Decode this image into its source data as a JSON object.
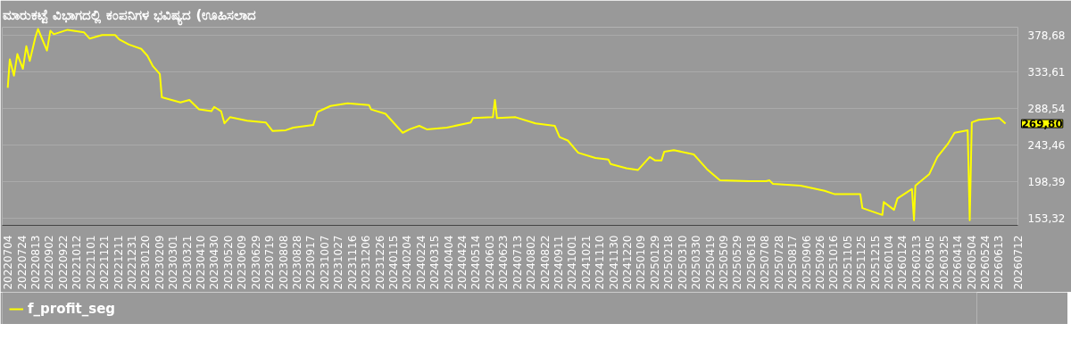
{
  "chart_data": {
    "type": "line",
    "title": "ಮಾರುಕಟ್ಟೆ ವಿಭಾಗದಲ್ಲಿ ಕಂಪನಿಗಳ ಭವಿಷ್ಯದ (ಊಹಿಸಲಾದ",
    "x": [
      "2022-07-04",
      "2022-07-07",
      "2022-07-13",
      "2022-07-18",
      "2022-07-26",
      "2022-07-31",
      "2022-08-05",
      "2022-08-13",
      "2022-08-17",
      "2022-08-30",
      "2022-09-04",
      "2022-09-09",
      "2022-09-29",
      "2022-10-23",
      "2022-10-31",
      "2022-11-18",
      "2022-12-07",
      "2022-12-13",
      "2022-12-27",
      "2023-01-14",
      "2023-01-23",
      "2023-01-31",
      "2023-02-10",
      "2023-02-13",
      "2023-03-12",
      "2023-03-25",
      "2023-04-08",
      "2023-04-26",
      "2023-04-30",
      "2023-05-10",
      "2023-05-15",
      "2023-05-23",
      "2023-06-17",
      "2023-07-14",
      "2023-07-24",
      "2023-08-12",
      "2023-08-23",
      "2023-09-21",
      "2023-09-27",
      "2023-10-16",
      "2023-11-10",
      "2023-12-11",
      "2023-12-14",
      "2024-01-04",
      "2024-01-29",
      "2024-02-08",
      "2024-02-22",
      "2024-03-04",
      "2024-04-02",
      "2024-05-07",
      "2024-05-10",
      "2024-06-08",
      "2024-06-11",
      "2024-06-14",
      "2024-07-11",
      "2024-08-09",
      "2024-09-06",
      "2024-09-13",
      "2024-09-25",
      "2024-10-10",
      "2024-11-04",
      "2024-11-23",
      "2024-11-26",
      "2024-12-19",
      "2025-01-05",
      "2025-01-22",
      "2025-01-30",
      "2025-02-08",
      "2025-02-12",
      "2025-02-26",
      "2025-03-27",
      "2025-04-04",
      "2025-04-15",
      "2025-05-04",
      "2025-06-16",
      "2025-07-10",
      "2025-07-15",
      "2025-07-20",
      "2025-08-29",
      "2025-10-03",
      "2025-10-18",
      "2025-11-24",
      "2025-11-27",
      "2025-12-26",
      "2025-12-28",
      "2026-01-12",
      "2026-01-17",
      "2026-02-07",
      "2026-02-10",
      "2026-02-12",
      "2026-03-04",
      "2026-03-16",
      "2026-03-31",
      "2026-04-10",
      "2026-04-29",
      "2026-05-02",
      "2026-05-05",
      "2026-05-15",
      "2026-06-14",
      "2026-06-23"
    ],
    "series": [
      {
        "name": "f_profit_seg",
        "color": "#ffff00",
        "values": [
          313.9,
          348.9,
          328.7,
          355.3,
          337.2,
          364.9,
          346.8,
          375.5,
          386.1,
          359.6,
          384.0,
          379.7,
          385.1,
          381.9,
          374.4,
          378.7,
          378.7,
          373.4,
          367.0,
          361.7,
          353.2,
          340.4,
          330.8,
          302.1,
          295.8,
          299.0,
          287.3,
          285.1,
          290.4,
          285.1,
          270.2,
          277.7,
          273.4,
          271.3,
          260.7,
          261.7,
          264.9,
          268.1,
          284.1,
          291.5,
          294.7,
          292.6,
          287.3,
          281.9,
          258.6,
          262.8,
          267.1,
          262.8,
          264.9,
          271.3,
          276.6,
          277.7,
          299.0,
          276.6,
          277.7,
          270.2,
          267.1,
          253.2,
          249.0,
          234.1,
          227.7,
          225.6,
          220.3,
          215.0,
          212.9,
          228.8,
          224.5,
          224.5,
          235.2,
          237.3,
          232.0,
          224.5,
          214.0,
          200.1,
          199.0,
          199.0,
          200.1,
          195.8,
          193.7,
          187.3,
          183.1,
          183.1,
          166.1,
          157.6,
          173.5,
          163.9,
          177.8,
          189.5,
          151.2,
          193.7,
          207.5,
          228.8,
          244.7,
          258.6,
          261.7,
          151.2,
          271.3,
          274.5,
          276.6,
          269.8
        ]
      }
    ],
    "xlim": [
      "2022-06-26",
      "2026-07-11"
    ],
    "ylim": [
      144.8,
      388.3
    ],
    "yticks": [
      {
        "value": 153.32,
        "label": "153,32"
      },
      {
        "value": 198.39,
        "label": "198,39"
      },
      {
        "value": 243.46,
        "label": "243,46"
      },
      {
        "value": 288.54,
        "label": "288,54"
      },
      {
        "value": 333.61,
        "label": "333,61"
      },
      {
        "value": 378.68,
        "label": "378,68"
      }
    ],
    "xticks": [
      {
        "value": "2022-07-04",
        "label": "20220704"
      },
      {
        "value": "2022-07-24",
        "label": "20220724"
      },
      {
        "value": "2022-08-13",
        "label": "20220813"
      },
      {
        "value": "2022-09-02",
        "label": "20220902"
      },
      {
        "value": "2022-09-22",
        "label": "20220922"
      },
      {
        "value": "2022-10-12",
        "label": "20221012"
      },
      {
        "value": "2022-11-01",
        "label": "20221101"
      },
      {
        "value": "2022-11-21",
        "label": "20221121"
      },
      {
        "value": "2022-12-11",
        "label": "20221211"
      },
      {
        "value": "2022-12-31",
        "label": "20221231"
      },
      {
        "value": "2023-01-20",
        "label": "20230120"
      },
      {
        "value": "2023-02-09",
        "label": "20230209"
      },
      {
        "value": "2023-03-01",
        "label": "20230301"
      },
      {
        "value": "2023-03-21",
        "label": "20230321"
      },
      {
        "value": "2023-04-10",
        "label": "20230410"
      },
      {
        "value": "2023-04-30",
        "label": "20230430"
      },
      {
        "value": "2023-05-20",
        "label": "20230520"
      },
      {
        "value": "2023-06-09",
        "label": "20230609"
      },
      {
        "value": "2023-06-29",
        "label": "20230629"
      },
      {
        "value": "2023-07-19",
        "label": "20230719"
      },
      {
        "value": "2023-08-08",
        "label": "20230808"
      },
      {
        "value": "2023-08-28",
        "label": "20230828"
      },
      {
        "value": "2023-09-17",
        "label": "20230917"
      },
      {
        "value": "2023-10-07",
        "label": "20231007"
      },
      {
        "value": "2023-10-27",
        "label": "20231027"
      },
      {
        "value": "2023-11-16",
        "label": "20231116"
      },
      {
        "value": "2023-12-06",
        "label": "20231206"
      },
      {
        "value": "2023-12-26",
        "label": "20231226"
      },
      {
        "value": "2024-01-15",
        "label": "20240115"
      },
      {
        "value": "2024-02-04",
        "label": "20240204"
      },
      {
        "value": "2024-02-24",
        "label": "20240224"
      },
      {
        "value": "2024-03-15",
        "label": "20240315"
      },
      {
        "value": "2024-04-04",
        "label": "20240404"
      },
      {
        "value": "2024-04-24",
        "label": "20240424"
      },
      {
        "value": "2024-05-14",
        "label": "20240514"
      },
      {
        "value": "2024-06-03",
        "label": "20240603"
      },
      {
        "value": "2024-06-23",
        "label": "20240623"
      },
      {
        "value": "2024-07-13",
        "label": "20240713"
      },
      {
        "value": "2024-08-02",
        "label": "20240802"
      },
      {
        "value": "2024-08-22",
        "label": "20240822"
      },
      {
        "value": "2024-09-11",
        "label": "20240911"
      },
      {
        "value": "2024-10-01",
        "label": "20241001"
      },
      {
        "value": "2024-10-21",
        "label": "20241021"
      },
      {
        "value": "2024-11-10",
        "label": "20241110"
      },
      {
        "value": "2024-11-30",
        "label": "20241130"
      },
      {
        "value": "2024-12-20",
        "label": "20241220"
      },
      {
        "value": "2025-01-09",
        "label": "20250109"
      },
      {
        "value": "2025-01-29",
        "label": "20250129"
      },
      {
        "value": "2025-02-18",
        "label": "20250218"
      },
      {
        "value": "2025-03-10",
        "label": "20250310"
      },
      {
        "value": "2025-03-30",
        "label": "20250330"
      },
      {
        "value": "2025-04-19",
        "label": "20250419"
      },
      {
        "value": "2025-05-09",
        "label": "20250509"
      },
      {
        "value": "2025-05-29",
        "label": "20250529"
      },
      {
        "value": "2025-06-18",
        "label": "20250618"
      },
      {
        "value": "2025-07-08",
        "label": "20250708"
      },
      {
        "value": "2025-07-28",
        "label": "20250728"
      },
      {
        "value": "2025-08-17",
        "label": "20250817"
      },
      {
        "value": "2025-09-06",
        "label": "20250906"
      },
      {
        "value": "2025-09-26",
        "label": "20250926"
      },
      {
        "value": "2025-10-16",
        "label": "20251016"
      },
      {
        "value": "2025-11-05",
        "label": "20251105"
      },
      {
        "value": "2025-11-25",
        "label": "20251125"
      },
      {
        "value": "2025-12-15",
        "label": "20251215"
      },
      {
        "value": "2026-01-04",
        "label": "20260104"
      },
      {
        "value": "2026-01-24",
        "label": "20260124"
      },
      {
        "value": "2026-02-13",
        "label": "20260213"
      },
      {
        "value": "2026-03-05",
        "label": "20260305"
      },
      {
        "value": "2026-03-25",
        "label": "20260325"
      },
      {
        "value": "2026-04-14",
        "label": "20260414"
      },
      {
        "value": "2026-05-04",
        "label": "20260504"
      },
      {
        "value": "2026-05-24",
        "label": "20260524"
      },
      {
        "value": "2026-06-13",
        "label": "20260613"
      },
      {
        "value": "2026-07-11",
        "label": "20260712"
      }
    ],
    "annotations": [
      {
        "text": "269,80",
        "x": "2026-06-23",
        "y": 269.8
      }
    ],
    "grid": "y",
    "legend": "bottom left"
  }
}
